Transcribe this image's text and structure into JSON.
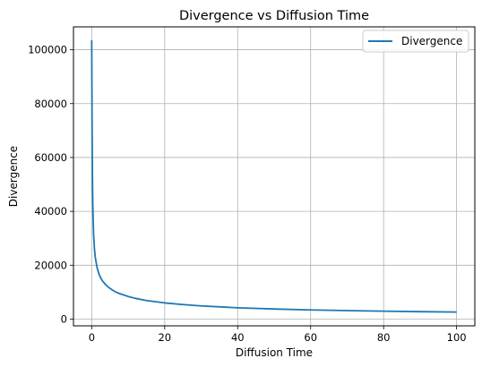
{
  "chart_data": {
    "type": "line",
    "title": "Divergence vs Diffusion Time",
    "xlabel": "Diffusion Time",
    "ylabel": "Divergence",
    "xlim": [
      -5,
      105
    ],
    "ylim": [
      -2500,
      108500
    ],
    "xticks": [
      0,
      20,
      40,
      60,
      80,
      100
    ],
    "yticks": [
      0,
      20000,
      40000,
      60000,
      80000,
      100000
    ],
    "grid": true,
    "legend": "top-right",
    "series": [
      {
        "name": "Divergence",
        "color": "#1f77b4",
        "x": [
          0,
          0.1,
          0.2,
          0.3,
          0.5,
          0.75,
          1,
          1.5,
          2,
          2.5,
          3,
          4,
          5,
          6,
          7,
          8,
          10,
          12,
          15,
          20,
          25,
          30,
          40,
          50,
          60,
          70,
          80,
          90,
          100
        ],
        "y": [
          103500,
          72500,
          53000,
          42500,
          32000,
          26000,
          22700,
          19000,
          16700,
          15200,
          14100,
          12500,
          11400,
          10500,
          9800,
          9300,
          8400,
          7700,
          6900,
          6000,
          5400,
          4900,
          4200,
          3750,
          3400,
          3150,
          2950,
          2750,
          2600
        ]
      }
    ]
  }
}
